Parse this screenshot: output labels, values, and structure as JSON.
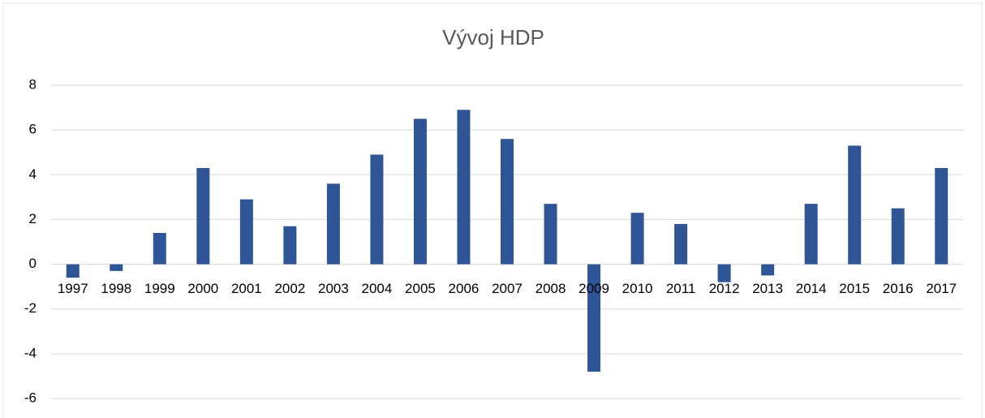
{
  "chart_data": {
    "type": "bar",
    "title": "Vývoj HDP",
    "categories": [
      "1997",
      "1998",
      "1999",
      "2000",
      "2001",
      "2002",
      "2003",
      "2004",
      "2005",
      "2006",
      "2007",
      "2008",
      "2009",
      "2010",
      "2011",
      "2012",
      "2013",
      "2014",
      "2015",
      "2016",
      "2017"
    ],
    "values": [
      -0.6,
      -0.3,
      1.4,
      4.3,
      2.9,
      1.7,
      3.6,
      4.9,
      6.5,
      6.9,
      5.6,
      2.7,
      -4.8,
      2.3,
      1.8,
      -0.8,
      -0.5,
      2.7,
      5.3,
      2.5,
      4.3
    ],
    "color": "#2f5597",
    "ylim": [
      -6,
      8
    ],
    "yticks": [
      -6,
      -4,
      -2,
      0,
      2,
      4,
      6,
      8
    ],
    "grid": true
  }
}
